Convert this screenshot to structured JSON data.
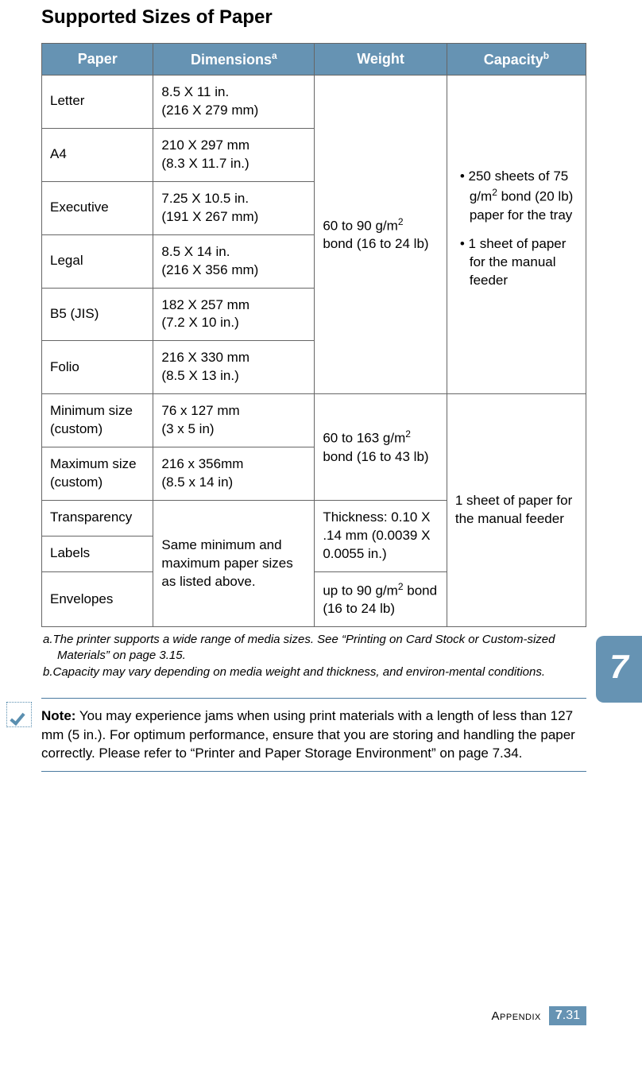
{
  "title": "Supported Sizes of Paper",
  "table": {
    "headers": {
      "paper": "Paper",
      "dimensions": "Dimensions",
      "dimensions_note": "a",
      "weight": "Weight",
      "capacity": "Capacity",
      "capacity_note": "b"
    },
    "rows_group1": [
      {
        "paper": "Letter",
        "dim1": "8.5 X 11 in.",
        "dim2": "(216 X 279 mm)"
      },
      {
        "paper": "A4",
        "dim1": "210 X 297 mm",
        "dim2": "(8.3 X 11.7 in.)"
      },
      {
        "paper": "Executive",
        "dim1": "7.25 X 10.5 in.",
        "dim2": "(191 X 267 mm)"
      },
      {
        "paper": "Legal",
        "dim1": "8.5 X 14 in.",
        "dim2": "(216 X 356 mm)"
      },
      {
        "paper": "B5 (JIS)",
        "dim1": "182 X 257 mm",
        "dim2": "(7.2 X 10 in.)"
      },
      {
        "paper": "Folio",
        "dim1": "216 X 330 mm",
        "dim2": "(8.5 X 13 in.)"
      }
    ],
    "weight_group1_l1": "60 to 90 g/m",
    "weight_group1_l2": "bond (16 to 24 lb)",
    "capacity_group1_b1": "• 250 sheets of 75 g/m² bond (20 lb) paper for the tray",
    "capacity_group1_b2": "• 1 sheet of paper for the manual feeder",
    "rows_group2": [
      {
        "paper": "Minimum size (custom)",
        "dim1": "76 x 127 mm",
        "dim2": "(3 x 5 in)"
      },
      {
        "paper": "Maximum size (custom)",
        "dim1": "216 x 356mm",
        "dim2": "(8.5 x 14 in)"
      }
    ],
    "weight_group2_l1": "60 to 163 g/m",
    "weight_group2_l2": "bond (16 to 43 lb)",
    "rows_group3": [
      {
        "paper": "Transparency"
      },
      {
        "paper": "Labels"
      },
      {
        "paper": "Envelopes"
      }
    ],
    "dim_group3": "Same minimum and maximum paper sizes as listed above.",
    "weight_group3a": "Thickness: 0.10 X .14 mm (0.0039 X 0.0055 in.)",
    "weight_group3b_l1": "up to 90 g/m",
    "weight_group3b_l2": " bond (16 to 24 lb)",
    "capacity_group23": "1 sheet of paper for the manual feeder"
  },
  "footnotes": {
    "a": "a.The printer supports a wide range of media sizes. See “Printing on Card Stock or Custom-sized Materials” on page 3.15.",
    "b": "b.Capacity may vary depending on media weight and thickness, and environ-mental conditions."
  },
  "note": {
    "label": "Note:",
    "text": " You may experience jams when using print materials with a length of less than 127 mm (5 in.). For optimum performance, ensure that you are storing and handling the paper correctly. Please refer to “Printer and Paper Storage Environment” on page 7.34."
  },
  "side_tab": "7",
  "footer": {
    "section": "Appendix",
    "chapter": "7",
    "page": "31"
  },
  "colors": {
    "header_bg": "#6693b3",
    "header_text": "#ffffff",
    "border": "#666666",
    "note_rule": "#4a7aa0"
  }
}
